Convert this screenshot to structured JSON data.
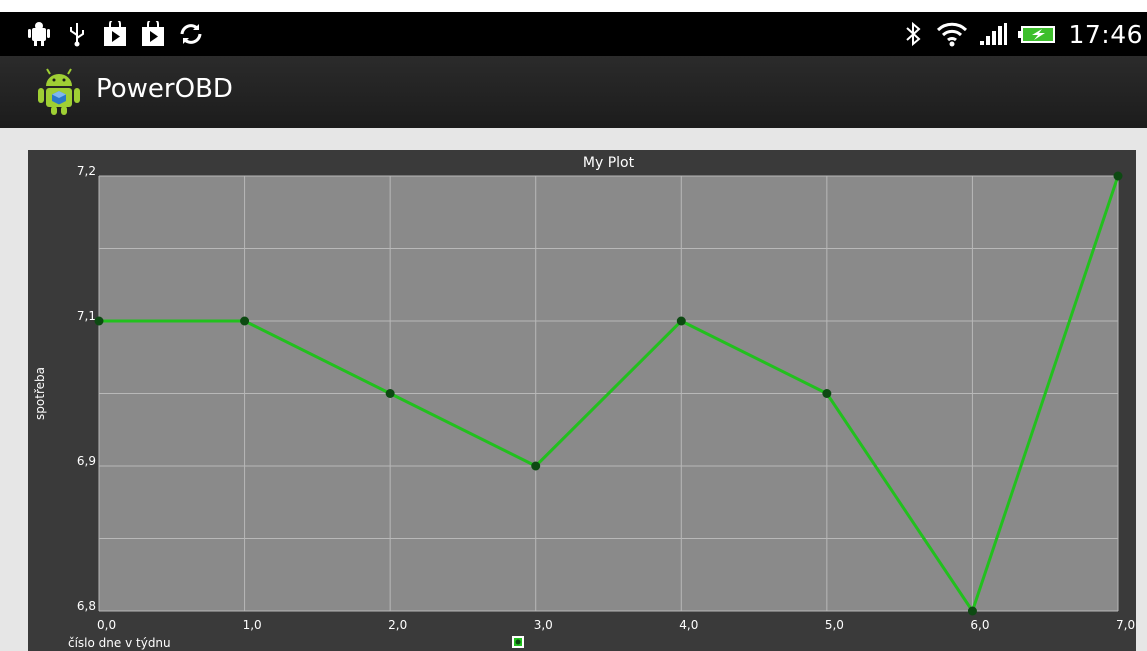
{
  "status_bar": {
    "time": "17:46",
    "left_icons": [
      "android-debug-icon",
      "usb-icon",
      "play-store-icon",
      "play-store-icon",
      "sync-icon"
    ],
    "right_icons": [
      "bluetooth-icon",
      "wifi-icon",
      "signal-icon",
      "battery-charging-icon"
    ]
  },
  "action_bar": {
    "title": "PowerOBD",
    "icon": "android-robot-icon"
  },
  "plot": {
    "title": "My Plot",
    "xlabel": "číslo dne v týdnu",
    "ylabel": "spotřeba",
    "colors": {
      "frame": "#3a3a3a",
      "plot_bg": "#8a8a8a",
      "grid": "#b8b8b8",
      "line": "#22c01e",
      "point": "#0d4a12"
    }
  },
  "chart_data": {
    "type": "line",
    "title": "My Plot",
    "xlabel": "číslo dne v týdnu",
    "ylabel": "spotřeba",
    "x": [
      0,
      1,
      2,
      3,
      4,
      5,
      6,
      7
    ],
    "series": [
      {
        "values": [
          7.05,
          7.05,
          7.0,
          6.95,
          7.05,
          7.0,
          6.85,
          7.15
        ]
      }
    ],
    "xlim": [
      0,
      7
    ],
    "ylim": [
      6.85,
      7.15
    ],
    "xticks": [
      "0,0",
      "1,0",
      "2,0",
      "3,0",
      "4,0",
      "5,0",
      "6,0",
      "7,0"
    ],
    "yticks": [
      {
        "value": 6.85,
        "label": "6,8"
      },
      {
        "value": 6.95,
        "label": "6,9"
      },
      {
        "value": 7.05,
        "label": "7,1"
      },
      {
        "value": 7.15,
        "label": "7,2"
      }
    ],
    "grid": true,
    "legend": "bottom-center"
  }
}
